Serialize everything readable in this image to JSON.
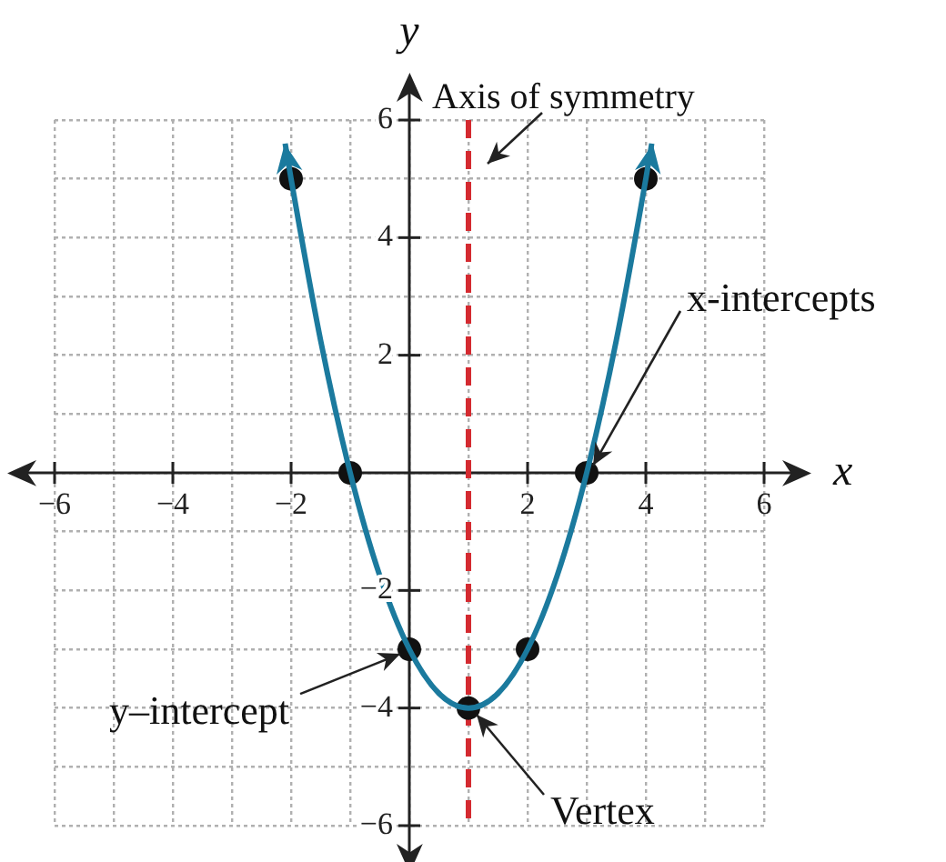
{
  "chart_data": {
    "type": "line",
    "xlabel": "x",
    "ylabel": "y",
    "xlim": [
      -6,
      6
    ],
    "ylim": [
      -6,
      6
    ],
    "xticks": [
      -6,
      {
        "value": -5,
        "label": null
      },
      -4,
      {
        "value": -3,
        "label": null
      },
      -2,
      {
        "value": -1,
        "label": null
      },
      {
        "value": 0,
        "label": null
      },
      {
        "value": 1,
        "label": null
      },
      2,
      {
        "value": 3,
        "label": null
      },
      4,
      {
        "value": 5,
        "label": null
      },
      6
    ],
    "yticks": [
      -6,
      {
        "value": -5,
        "label": null
      },
      -4,
      {
        "value": -3,
        "label": null
      },
      -2,
      {
        "value": -1,
        "label": null
      },
      {
        "value": 0,
        "label": null
      },
      {
        "value": 1,
        "label": null
      },
      2,
      {
        "value": 3,
        "label": null
      },
      4,
      {
        "value": 5,
        "label": null
      },
      6
    ],
    "grid": true,
    "legend": false,
    "series": [
      {
        "type": "line",
        "color": "#1b7a9e",
        "marker": "none",
        "x": [
          -2.1,
          -2,
          -1.5,
          -1,
          -0.5,
          0,
          0.5,
          1,
          1.5,
          2,
          2.5,
          3,
          3.5,
          4,
          4.1
        ],
        "values": [
          5.6,
          5,
          2.25,
          0,
          -1.75,
          -3,
          -3.75,
          -4,
          -3.75,
          -3,
          -1.75,
          0,
          2.25,
          5,
          5.6
        ]
      },
      {
        "type": "scatter",
        "color": "#111111",
        "marker": "circle",
        "x": [
          -2,
          -1,
          0,
          1,
          2,
          3,
          4
        ],
        "values": [
          5,
          0,
          -3,
          -4,
          -3,
          0,
          5
        ]
      }
    ],
    "ref_lines": [
      {
        "axis": "x",
        "value": 1,
        "label": "Axis of symmetry",
        "color": "#d42a30",
        "line_style": "dashed"
      }
    ],
    "annotations": [
      {
        "text": "x-intercepts",
        "x": 3,
        "y": 0
      },
      {
        "text": "y–intercept",
        "x": 0,
        "y": -3
      },
      {
        "text": "Vertex",
        "x": 1,
        "y": -4
      }
    ]
  }
}
